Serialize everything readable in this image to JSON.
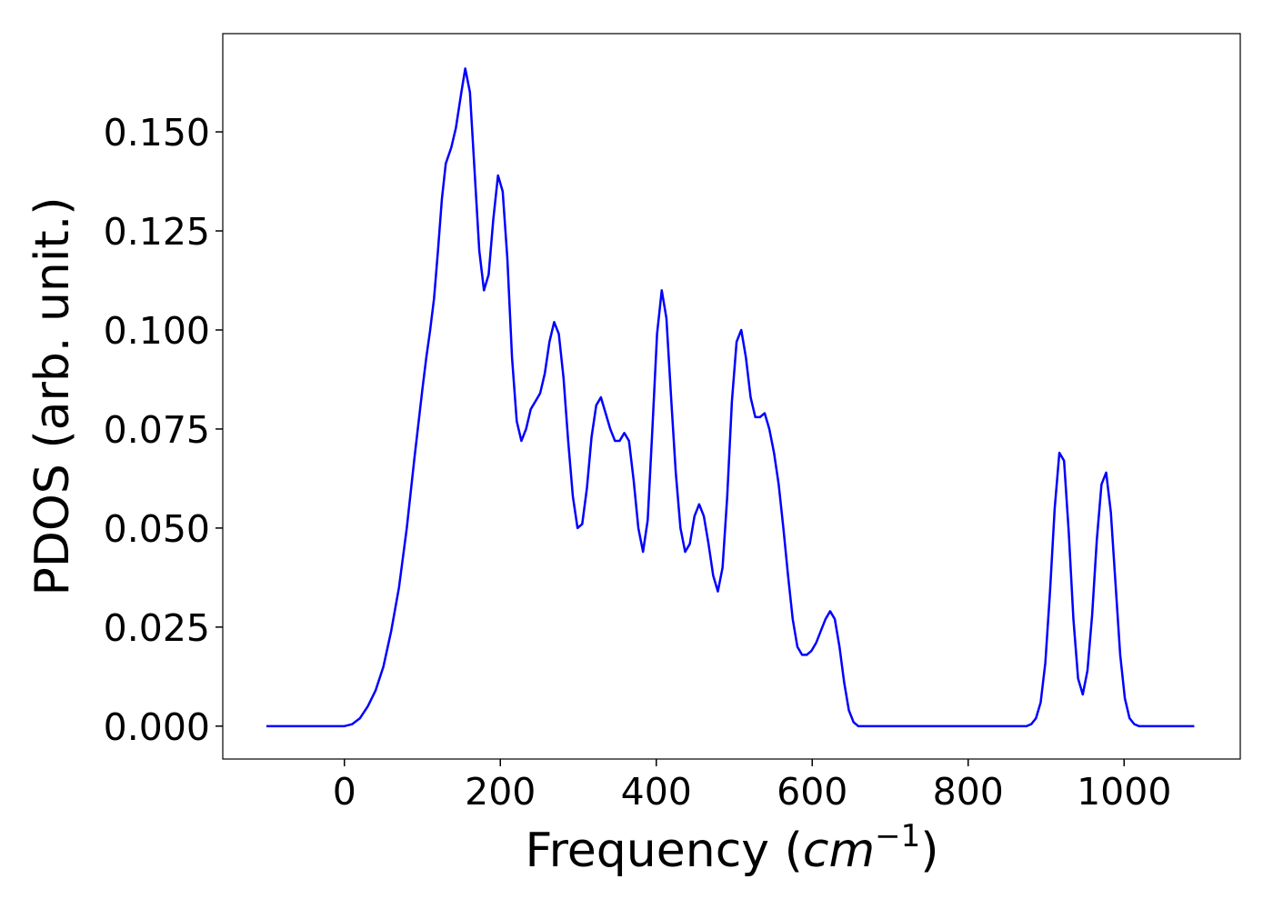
{
  "chart_data": {
    "type": "line",
    "x_label": [
      "Frequency (",
      "cm",
      "−1",
      ")"
    ],
    "y_label": "PDOS (arb. unit.)",
    "xlim": [
      -156,
      1149
    ],
    "xticks": [
      0,
      200,
      400,
      600,
      800,
      1000
    ],
    "ylim": [
      -0.0083,
      0.1748
    ],
    "yticks": [
      {
        "value": 0,
        "label": "0.000"
      },
      {
        "value": 0.025,
        "label": "0.025"
      },
      {
        "value": 0.05,
        "label": "0.050"
      },
      {
        "value": 0.075,
        "label": "0.075"
      },
      {
        "value": 0.1,
        "label": "0.100"
      },
      {
        "value": 0.125,
        "label": "0.125"
      },
      {
        "value": 0.15,
        "label": "0.150"
      }
    ],
    "grid": false,
    "series": [
      {
        "color": "#0000ff",
        "x": [
          -100,
          0,
          10,
          20,
          30,
          40,
          50,
          60,
          70,
          80,
          90,
          100,
          105,
          110,
          115,
          120,
          125,
          130,
          137,
          143,
          150,
          155,
          161,
          167,
          173,
          179,
          185,
          191,
          197,
          203,
          209,
          215,
          221,
          227,
          233,
          239,
          245,
          251,
          257,
          263,
          269,
          275,
          281,
          287,
          293,
          299,
          305,
          311,
          317,
          323,
          329,
          335,
          341,
          347,
          353,
          359,
          365,
          371,
          377,
          383,
          389,
          395,
          401,
          407,
          413,
          419,
          425,
          431,
          437,
          443,
          449,
          455,
          461,
          467,
          473,
          479,
          485,
          491,
          497,
          503,
          509,
          515,
          521,
          527,
          533,
          539,
          545,
          551,
          557,
          563,
          569,
          575,
          581,
          587,
          593,
          599,
          605,
          611,
          617,
          623,
          629,
          635,
          641,
          647,
          653,
          659,
          875,
          881,
          887,
          893,
          899,
          905,
          911,
          917,
          923,
          929,
          935,
          941,
          947,
          953,
          959,
          965,
          971,
          977,
          983,
          989,
          995,
          1001,
          1007,
          1013,
          1019,
          1090
        ],
        "values": [
          0,
          0,
          0.0005,
          0.002,
          0.005,
          0.009,
          0.015,
          0.024,
          0.035,
          0.05,
          0.068,
          0.085,
          0.093,
          0.1,
          0.108,
          0.12,
          0.133,
          0.142,
          0.146,
          0.151,
          0.16,
          0.166,
          0.16,
          0.14,
          0.12,
          0.11,
          0.114,
          0.128,
          0.139,
          0.135,
          0.118,
          0.093,
          0.077,
          0.072,
          0.075,
          0.08,
          0.082,
          0.084,
          0.089,
          0.097,
          0.102,
          0.099,
          0.088,
          0.072,
          0.058,
          0.05,
          0.051,
          0.06,
          0.073,
          0.081,
          0.083,
          0.079,
          0.075,
          0.072,
          0.072,
          0.074,
          0.072,
          0.062,
          0.05,
          0.044,
          0.052,
          0.075,
          0.099,
          0.11,
          0.103,
          0.083,
          0.064,
          0.05,
          0.044,
          0.046,
          0.053,
          0.056,
          0.053,
          0.046,
          0.038,
          0.034,
          0.04,
          0.058,
          0.082,
          0.097,
          0.1,
          0.093,
          0.083,
          0.078,
          0.078,
          0.079,
          0.075,
          0.069,
          0.061,
          0.05,
          0.038,
          0.027,
          0.02,
          0.018,
          0.018,
          0.019,
          0.021,
          0.024,
          0.027,
          0.029,
          0.027,
          0.02,
          0.011,
          0.004,
          0.001,
          0,
          0,
          0.0005,
          0.002,
          0.006,
          0.016,
          0.034,
          0.055,
          0.069,
          0.067,
          0.049,
          0.027,
          0.012,
          0.008,
          0.014,
          0.028,
          0.047,
          0.061,
          0.064,
          0.054,
          0.036,
          0.018,
          0.007,
          0.002,
          0.0005,
          0,
          0
        ]
      }
    ]
  }
}
